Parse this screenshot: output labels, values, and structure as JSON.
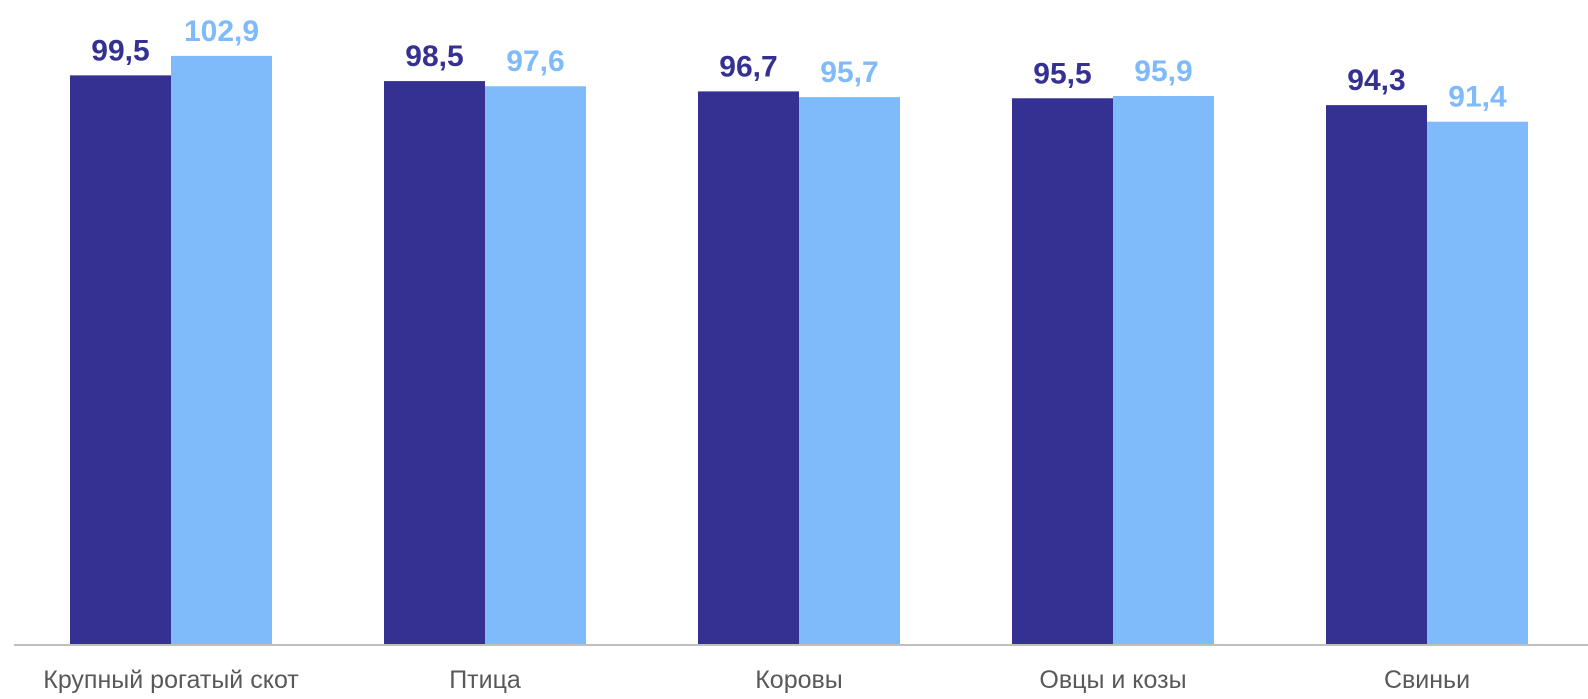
{
  "chart_data": {
    "type": "bar",
    "categories": [
      "Крупный рогатый скот",
      "Птица",
      "Коровы",
      "Овцы и козы",
      "Свиньи"
    ],
    "series": [
      {
        "values": [
          99.5,
          98.5,
          96.7,
          95.5,
          94.3
        ],
        "labels": [
          "99,5",
          "98,5",
          "96,7",
          "95,5",
          "94,3"
        ],
        "color": "#343192"
      },
      {
        "values": [
          102.9,
          97.6,
          95.7,
          95.9,
          91.4
        ],
        "labels": [
          "102,9",
          "97,6",
          "95,7",
          "95,9",
          "91,4"
        ],
        "color": "#7fbafb"
      }
    ],
    "ylim": [
      0,
      105
    ],
    "grid": false,
    "axis_color": "#bfbfbf",
    "category_label_color": "#595959"
  }
}
